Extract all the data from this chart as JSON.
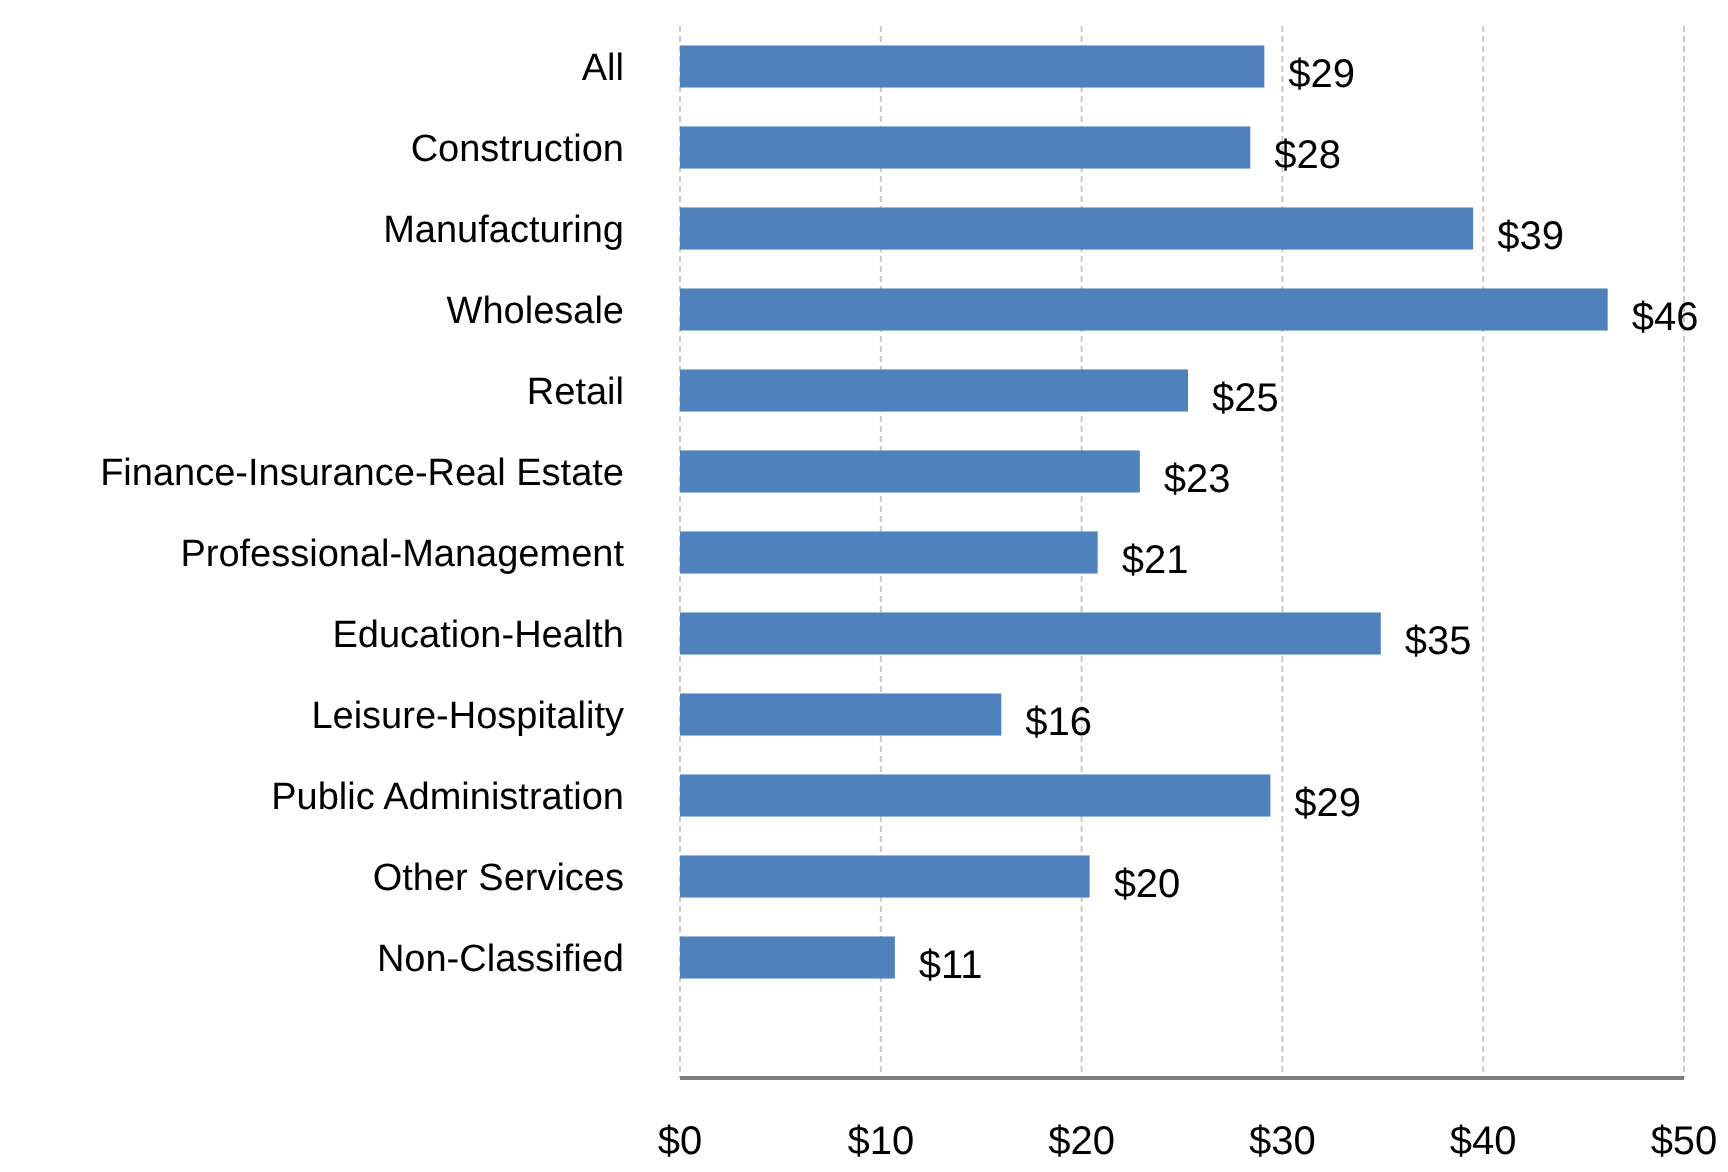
{
  "chart_data": {
    "type": "bar",
    "orientation": "horizontal",
    "categories": [
      "All",
      "Construction",
      "Manufacturing",
      "Wholesale",
      "Retail",
      "Finance-Insurance-Real Estate",
      "Professional-Management",
      "Education-Health",
      "Leisure-Hospitality",
      "Public Administration",
      "Other Services",
      "Non-Classified"
    ],
    "values": [
      29.1,
      28.4,
      39.5,
      46.2,
      25.3,
      22.9,
      20.8,
      34.9,
      16.0,
      29.4,
      20.4,
      10.7
    ],
    "value_labels": [
      "$29",
      "$28",
      "$39",
      "$46",
      "$25",
      "$23",
      "$21",
      "$35",
      "$16",
      "$29",
      "$20",
      "$11"
    ],
    "color": "#4f81bd",
    "xlim": [
      0,
      50
    ],
    "xticks": [
      {
        "value": 0,
        "label": "$0"
      },
      {
        "value": 10,
        "label": "$10"
      },
      {
        "value": 20,
        "label": "$20"
      },
      {
        "value": 30,
        "label": "$30"
      },
      {
        "value": 40,
        "label": "$40"
      },
      {
        "value": 50,
        "label": "$50"
      }
    ],
    "grid": "x"
  }
}
